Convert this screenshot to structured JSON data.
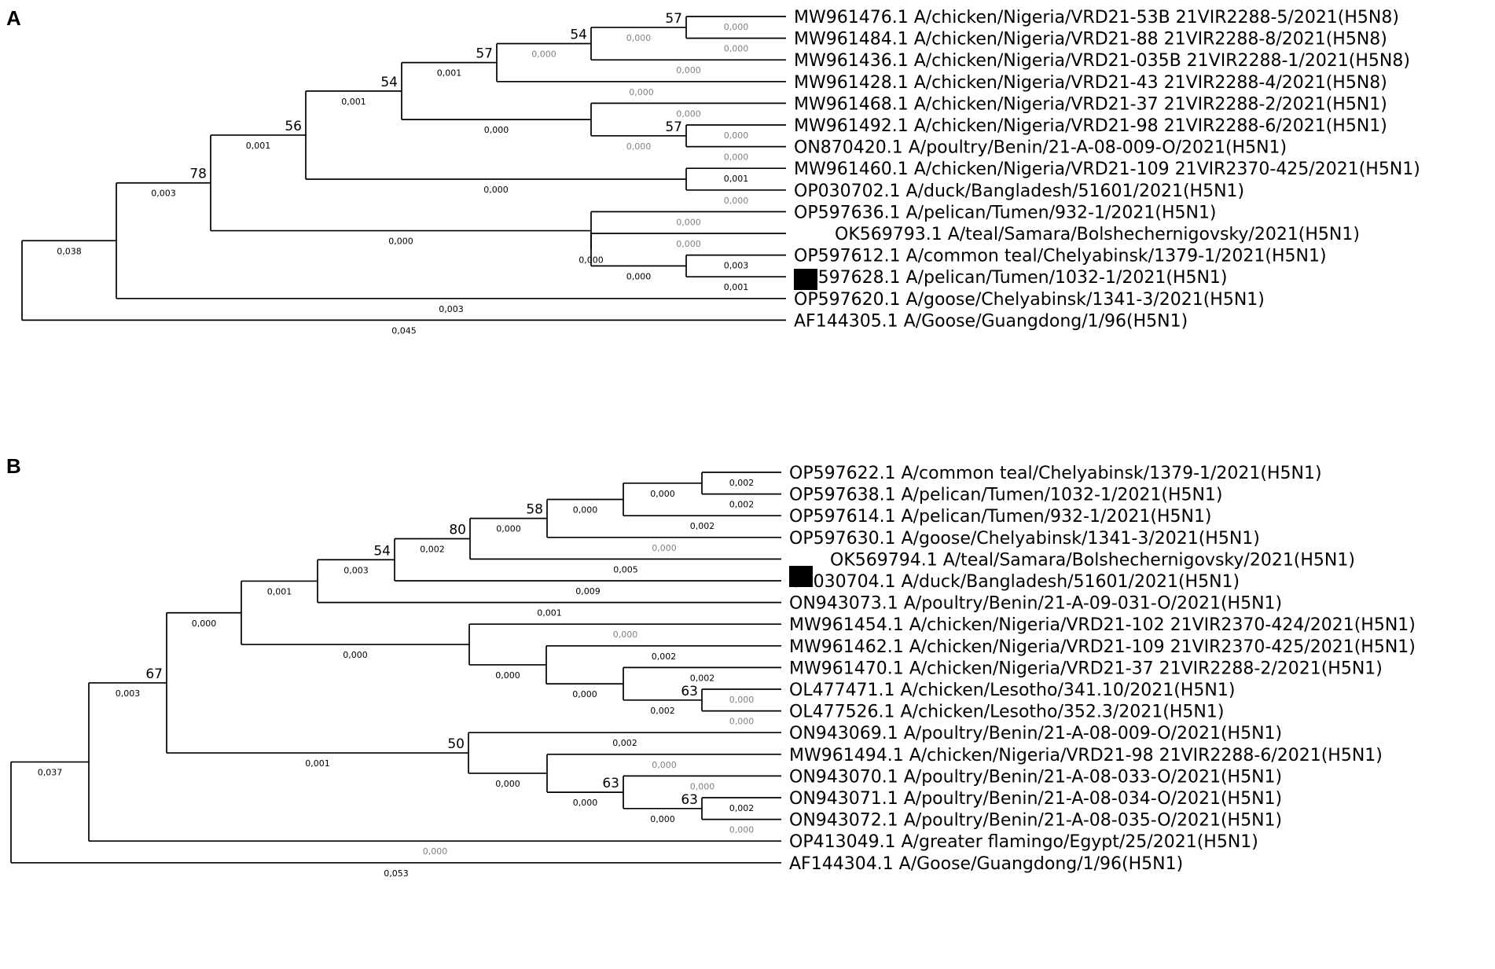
{
  "panels": [
    {
      "label": "A",
      "leaves": [
        {
          "id": "a_l0",
          "name": "MW961476.1 A/chicken/Nigeria/VRD21-53B 21VIR2288-5/2021(H5N8)",
          "blen": "0,000",
          "grey": true
        },
        {
          "id": "a_l1",
          "name": "MW961484.1 A/chicken/Nigeria/VRD21-88 21VIR2288-8/2021(H5N8)",
          "blen": "0,000",
          "grey": true
        },
        {
          "id": "a_l2",
          "name": "MW961436.1 A/chicken/Nigeria/VRD21-035B 21VIR2288-1/2021(H5N8)",
          "blen": "0,000",
          "grey": true
        },
        {
          "id": "a_l3",
          "name": "MW961428.1 A/chicken/Nigeria/VRD21-43 21VIR2288-4/2021(H5N8)",
          "blen": "0,000",
          "grey": true
        },
        {
          "id": "a_l4",
          "name": "MW961468.1 A/chicken/Nigeria/VRD21-37 21VIR2288-2/2021(H5N1)",
          "blen": "0,000",
          "grey": true
        },
        {
          "id": "a_l5",
          "name": "MW961492.1 A/chicken/Nigeria/VRD21-98 21VIR2288-6/2021(H5N1)",
          "blen": "0,000",
          "grey": true
        },
        {
          "id": "a_l6",
          "name": "ON870420.1 A/poultry/Benin/21-A-08-009-O/2021(H5N1)",
          "blen": "0,000",
          "grey": true
        },
        {
          "id": "a_l7",
          "name": "MW961460.1 A/chicken/Nigeria/VRD21-109 21VIR2370-425/2021(H5N1)",
          "blen": "0,001",
          "grey": false
        },
        {
          "id": "a_l8",
          "name": "OP030702.1 A/duck/Bangladesh/51601/2021(H5N1)",
          "blen": "0,000",
          "grey": true
        },
        {
          "id": "a_l9",
          "name": "OP597636.1 A/pelican/Tumen/932-1/2021(H5N1)",
          "blen": "0,000",
          "grey": true
        },
        {
          "id": "a_l10",
          "name": "OK569793.1 A/teal/Samara/Bolshechernigovsky/2021(H5N1)",
          "blen": "0,000",
          "grey": true,
          "marked": true
        },
        {
          "id": "a_l11",
          "name": "OP597612.1 A/common teal/Chelyabinsk/1379-1/2021(H5N1)",
          "blen": "0,003",
          "grey": false
        },
        {
          "id": "a_l12",
          "name": "OP597628.1 A/pelican/Tumen/1032-1/2021(H5N1)",
          "blen": "0,001",
          "grey": false
        },
        {
          "id": "a_l13",
          "name": "OP597620.1 A/goose/Chelyabinsk/1341-3/2021(H5N1)",
          "blen": "0,003",
          "grey": false
        },
        {
          "id": "a_l14",
          "name": "AF144305.1 A/Goose/Guangdong/1/96(H5N1)",
          "blen": "0,045",
          "grey": false
        }
      ],
      "nodes": [
        {
          "id": "a_n0",
          "children": [
            "a_l0",
            "a_l1"
          ],
          "blen": "0,000",
          "grey": true,
          "boot": "57"
        },
        {
          "id": "a_n1",
          "children": [
            "a_n0",
            "a_l2"
          ],
          "blen": "0,000",
          "grey": true,
          "boot": "54"
        },
        {
          "id": "a_n2",
          "children": [
            "a_n1",
            "a_l3"
          ],
          "blen": "0,001",
          "grey": false,
          "boot": "57"
        },
        {
          "id": "a_n3",
          "children": [
            "a_l5",
            "a_l6"
          ],
          "blen": "0,000",
          "grey": true,
          "boot": "57"
        },
        {
          "id": "a_n4",
          "children": [
            "a_l4",
            "a_n3"
          ],
          "blen": "0,000",
          "grey": false,
          "boot": ""
        },
        {
          "id": "a_n5",
          "children": [
            "a_n2",
            "a_n4"
          ],
          "blen": "0,001",
          "grey": false,
          "boot": "54"
        },
        {
          "id": "a_n6",
          "children": [
            "a_l7",
            "a_l8"
          ],
          "blen": "0,000",
          "grey": false,
          "boot": ""
        },
        {
          "id": "a_n7",
          "children": [
            "a_n5",
            "a_n6"
          ],
          "blen": "0,001",
          "grey": false,
          "boot": "56"
        },
        {
          "id": "a_n8",
          "children": [
            "a_l11",
            "a_l12"
          ],
          "blen": "0,000",
          "grey": false,
          "boot": ""
        },
        {
          "id": "a_n9",
          "children": [
            "a_l10",
            "a_n8"
          ],
          "blen": "0,000",
          "grey": false,
          "boot": ""
        },
        {
          "id": "a_n10",
          "children": [
            "a_l9",
            "a_n9"
          ],
          "blen": "0,000",
          "grey": false,
          "boot": ""
        },
        {
          "id": "a_n11",
          "children": [
            "a_n7",
            "a_n10"
          ],
          "blen": "0,003",
          "grey": false,
          "boot": "78"
        },
        {
          "id": "a_n12",
          "children": [
            "a_n11",
            "a_l13"
          ],
          "blen": "0,038",
          "grey": false,
          "boot": ""
        },
        {
          "id": "a_root",
          "children": [
            "a_n12",
            "a_l14"
          ],
          "blen": "",
          "grey": false,
          "boot": ""
        }
      ]
    },
    {
      "label": "B",
      "leaves": [
        {
          "id": "b_l0",
          "name": "OP597622.1 A/common teal/Chelyabinsk/1379-1/2021(H5N1)",
          "blen": "0,002",
          "grey": false
        },
        {
          "id": "b_l1",
          "name": "OP597638.1 A/pelican/Tumen/1032-1/2021(H5N1)",
          "blen": "0,002",
          "grey": false
        },
        {
          "id": "b_l2",
          "name": "OP597614.1 A/pelican/Tumen/932-1/2021(H5N1)",
          "blen": "0,002",
          "grey": false
        },
        {
          "id": "b_l3",
          "name": "OP597630.1 A/goose/Chelyabinsk/1341-3/2021(H5N1)",
          "blen": "0,000",
          "grey": true
        },
        {
          "id": "b_l4",
          "name": "OK569794.1 A/teal/Samara/Bolshechernigovsky/2021(H5N1)",
          "blen": "0,005",
          "grey": false,
          "marked": true
        },
        {
          "id": "b_l5",
          "name": "OP030704.1 A/duck/Bangladesh/51601/2021(H5N1)",
          "blen": "0,009",
          "grey": false
        },
        {
          "id": "b_l6",
          "name": "ON943073.1 A/poultry/Benin/21-A-09-031-O/2021(H5N1)",
          "blen": "0,001",
          "grey": false
        },
        {
          "id": "b_l7",
          "name": "MW961454.1 A/chicken/Nigeria/VRD21-102 21VIR2370-424/2021(H5N1)",
          "blen": "0,000",
          "grey": true
        },
        {
          "id": "b_l8",
          "name": "MW961462.1 A/chicken/Nigeria/VRD21-109 21VIR2370-425/2021(H5N1)",
          "blen": "0,002",
          "grey": false
        },
        {
          "id": "b_l9",
          "name": "MW961470.1 A/chicken/Nigeria/VRD21-37 21VIR2288-2/2021(H5N1)",
          "blen": "0,002",
          "grey": false
        },
        {
          "id": "b_l10",
          "name": "OL477471.1 A/chicken/Lesotho/341.10/2021(H5N1)",
          "blen": "0,000",
          "grey": true
        },
        {
          "id": "b_l11",
          "name": "OL477526.1 A/chicken/Lesotho/352.3/2021(H5N1)",
          "blen": "0,000",
          "grey": true
        },
        {
          "id": "b_l12",
          "name": "ON943069.1 A/poultry/Benin/21-A-08-009-O/2021(H5N1)",
          "blen": "0,002",
          "grey": false
        },
        {
          "id": "b_l13",
          "name": "MW961494.1 A/chicken/Nigeria/VRD21-98 21VIR2288-6/2021(H5N1)",
          "blen": "0,000",
          "grey": true
        },
        {
          "id": "b_l14",
          "name": "ON943070.1 A/poultry/Benin/21-A-08-033-O/2021(H5N1)",
          "blen": "0,000",
          "grey": true
        },
        {
          "id": "b_l15",
          "name": "ON943071.1 A/poultry/Benin/21-A-08-034-O/2021(H5N1)",
          "blen": "0,002",
          "grey": false
        },
        {
          "id": "b_l16",
          "name": "ON943072.1 A/poultry/Benin/21-A-08-035-O/2021(H5N1)",
          "blen": "0,000",
          "grey": true
        },
        {
          "id": "b_l17",
          "name": "OP413049.1 A/greater flamingo/Egypt/25/2021(H5N1)",
          "blen": "0,000",
          "grey": true
        },
        {
          "id": "b_l18",
          "name": "AF144304.1 A/Goose/Guangdong/1/96(H5N1)",
          "blen": "0,053",
          "grey": false
        }
      ],
      "nodes": [
        {
          "id": "b_n0",
          "children": [
            "b_l0",
            "b_l1"
          ],
          "blen": "0,000",
          "grey": false,
          "boot": ""
        },
        {
          "id": "b_n1",
          "children": [
            "b_n0",
            "b_l2"
          ],
          "blen": "0,000",
          "grey": false,
          "boot": ""
        },
        {
          "id": "b_n2",
          "children": [
            "b_n1",
            "b_l3"
          ],
          "blen": "0,000",
          "grey": false,
          "boot": "58"
        },
        {
          "id": "b_n3",
          "children": [
            "b_n2",
            "b_l4"
          ],
          "blen": "0,002",
          "grey": false,
          "boot": "80"
        },
        {
          "id": "b_n4",
          "children": [
            "b_n3",
            "b_l5"
          ],
          "blen": "0,003",
          "grey": false,
          "boot": "54"
        },
        {
          "id": "b_n5",
          "children": [
            "b_n4",
            "b_l6"
          ],
          "blen": "0,001",
          "grey": false,
          "boot": ""
        },
        {
          "id": "b_n6",
          "children": [
            "b_l10",
            "b_l11"
          ],
          "blen": "0,002",
          "grey": false,
          "boot": "63"
        },
        {
          "id": "b_n7",
          "children": [
            "b_l9",
            "b_n6"
          ],
          "blen": "0,000",
          "grey": false,
          "boot": ""
        },
        {
          "id": "b_n8",
          "children": [
            "b_l8",
            "b_n7"
          ],
          "blen": "0,000",
          "grey": false,
          "boot": ""
        },
        {
          "id": "b_n9",
          "children": [
            "b_l7",
            "b_n8"
          ],
          "blen": "0,000",
          "grey": false,
          "boot": ""
        },
        {
          "id": "b_n10",
          "children": [
            "b_n5",
            "b_n9"
          ],
          "blen": "0,000",
          "grey": false,
          "boot": ""
        },
        {
          "id": "b_n11",
          "children": [
            "b_l15",
            "b_l16"
          ],
          "blen": "0,000",
          "grey": false,
          "boot": "63"
        },
        {
          "id": "b_n12",
          "children": [
            "b_l14",
            "b_n11"
          ],
          "blen": "0,000",
          "grey": false,
          "boot": "63"
        },
        {
          "id": "b_n13",
          "children": [
            "b_l13",
            "b_n12"
          ],
          "blen": "0,000",
          "grey": false,
          "boot": ""
        },
        {
          "id": "b_n14",
          "children": [
            "b_l12",
            "b_n13"
          ],
          "blen": "0,001",
          "grey": false,
          "boot": "50"
        },
        {
          "id": "b_n15",
          "children": [
            "b_n10",
            "b_n14"
          ],
          "blen": "0,003",
          "grey": false,
          "boot": "67"
        },
        {
          "id": "b_n16",
          "children": [
            "b_n15",
            "b_l17"
          ],
          "blen": "0,037",
          "grey": false,
          "boot": ""
        },
        {
          "id": "b_root",
          "children": [
            "b_n16",
            "b_l18"
          ],
          "blen": "",
          "grey": false,
          "boot": ""
        }
      ]
    }
  ]
}
